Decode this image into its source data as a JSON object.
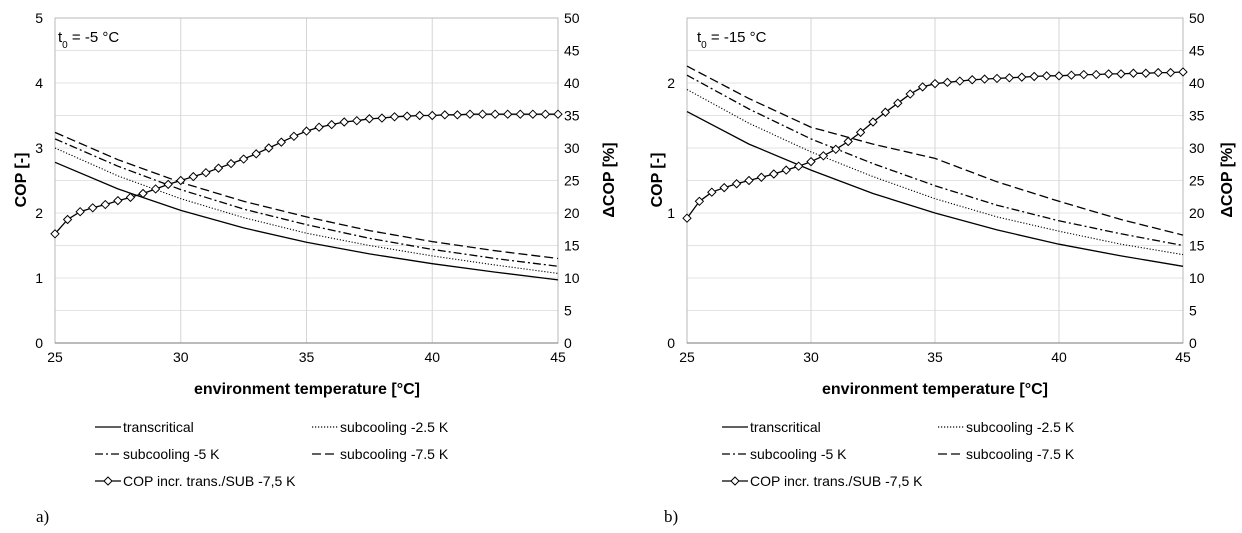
{
  "chart_data": [
    {
      "type": "line",
      "panel_label": "a)",
      "annotation": "t",
      "annotation_sub": "0",
      "annotation_rest": " = -5 °C",
      "xlabel": "environment temperature [°C]",
      "ylabel": "COP [-]",
      "y2label": "ΔCOP [%]",
      "xlim": [
        25,
        45
      ],
      "ylim": [
        0,
        5
      ],
      "y2lim": [
        0,
        50
      ],
      "xticks": [
        "25",
        "30",
        "35",
        "40",
        "45"
      ],
      "yticks": [
        "0",
        "1",
        "2",
        "3",
        "4",
        "5"
      ],
      "y2ticks": [
        "0",
        "5",
        "10",
        "15",
        "20",
        "25",
        "30",
        "35",
        "40",
        "45",
        "50"
      ],
      "grid": true,
      "series": [
        {
          "name": "transcritical",
          "axis": "left",
          "style": "solid",
          "x": [
            25,
            27.5,
            30,
            32.5,
            35,
            37.5,
            40,
            42.5,
            45
          ],
          "y": [
            2.78,
            2.37,
            2.04,
            1.77,
            1.55,
            1.37,
            1.22,
            1.09,
            0.97
          ]
        },
        {
          "name": "subcooling -2.5 K",
          "axis": "left",
          "style": "dotted",
          "x": [
            25,
            27.5,
            30,
            32.5,
            35,
            37.5,
            40,
            42.5,
            45
          ],
          "y": [
            3.0,
            2.57,
            2.22,
            1.93,
            1.69,
            1.5,
            1.34,
            1.2,
            1.07
          ]
        },
        {
          "name": "subcooling -5 K",
          "axis": "left",
          "style": "dashdot",
          "x": [
            25,
            27.5,
            30,
            32.5,
            35,
            37.5,
            40,
            42.5,
            45
          ],
          "y": [
            3.14,
            2.72,
            2.36,
            2.06,
            1.82,
            1.61,
            1.44,
            1.3,
            1.18
          ]
        },
        {
          "name": "subcooling -7.5 K",
          "axis": "left",
          "style": "dashed",
          "x": [
            25,
            27.5,
            30,
            32.5,
            35,
            37.5,
            40,
            42.5,
            45
          ],
          "y": [
            3.24,
            2.82,
            2.47,
            2.18,
            1.94,
            1.73,
            1.56,
            1.42,
            1.3
          ]
        },
        {
          "name": "COP incr. trans./SUB -7,5 K",
          "axis": "right",
          "style": "diamond",
          "x": [
            25,
            25.5,
            26,
            26.5,
            27,
            27.5,
            28,
            28.5,
            29,
            29.5,
            30,
            30.5,
            31,
            31.5,
            32,
            32.5,
            33,
            33.5,
            34,
            34.5,
            35,
            35.5,
            36,
            36.5,
            37,
            37.5,
            38,
            38.5,
            39,
            39.5,
            40,
            40.5,
            41,
            41.5,
            42,
            42.5,
            43,
            43.5,
            44,
            44.5,
            45
          ],
          "y": [
            16.8,
            19.0,
            20.2,
            20.8,
            21.3,
            21.9,
            22.4,
            23.0,
            23.7,
            24.4,
            25.0,
            25.6,
            26.2,
            26.9,
            27.6,
            28.3,
            29.1,
            30.0,
            30.9,
            31.8,
            32.6,
            33.2,
            33.6,
            34.0,
            34.2,
            34.5,
            34.6,
            34.8,
            34.9,
            35.0,
            35.0,
            35.1,
            35.1,
            35.2,
            35.2,
            35.2,
            35.2,
            35.2,
            35.2,
            35.2,
            35.2
          ]
        }
      ]
    },
    {
      "type": "line",
      "panel_label": "b)",
      "annotation": "t",
      "annotation_sub": "0",
      "annotation_rest": " = -15 °C",
      "xlabel": "environment temperature [°C]",
      "ylabel": "COP [-]",
      "y2label": "ΔCOP [%]",
      "xlim": [
        25,
        45
      ],
      "ylim": [
        0,
        2.5
      ],
      "y2lim": [
        0,
        50
      ],
      "xticks": [
        "25",
        "30",
        "35",
        "40",
        "45"
      ],
      "yticks": [
        "0",
        "1",
        "2"
      ],
      "y2ticks": [
        "0",
        "5",
        "10",
        "15",
        "20",
        "25",
        "30",
        "35",
        "40",
        "45",
        "50"
      ],
      "grid": true,
      "series": [
        {
          "name": "transcritical",
          "axis": "left",
          "style": "solid",
          "x": [
            25,
            27.5,
            30,
            32.5,
            35,
            37.5,
            40,
            42.5,
            45
          ],
          "y": [
            1.78,
            1.53,
            1.33,
            1.15,
            1.0,
            0.87,
            0.76,
            0.67,
            0.59
          ]
        },
        {
          "name": "subcooling -2.5 K",
          "axis": "left",
          "style": "dotted",
          "x": [
            25,
            27.5,
            30,
            32.5,
            35,
            37.5,
            40,
            42.5,
            45
          ],
          "y": [
            1.95,
            1.69,
            1.47,
            1.28,
            1.11,
            0.97,
            0.86,
            0.76,
            0.68
          ]
        },
        {
          "name": "subcooling -5 K",
          "axis": "left",
          "style": "dashdot",
          "x": [
            25,
            27.5,
            30,
            32.5,
            35,
            37.5,
            40,
            42.5,
            45
          ],
          "y": [
            2.06,
            1.8,
            1.57,
            1.38,
            1.21,
            1.06,
            0.94,
            0.84,
            0.75
          ]
        },
        {
          "name": "subcooling -7.5 K",
          "axis": "left",
          "style": "dashed",
          "x": [
            25,
            27.5,
            30,
            32.5,
            35,
            37.5,
            40,
            42.5,
            45
          ],
          "y": [
            2.13,
            1.88,
            1.66,
            1.53,
            1.42,
            1.24,
            1.09,
            0.95,
            0.83
          ]
        },
        {
          "name": "COP incr. trans./SUB -7,5 K",
          "axis": "right",
          "style": "diamond",
          "x": [
            25,
            25.5,
            26,
            26.5,
            27,
            27.5,
            28,
            28.5,
            29,
            29.5,
            30,
            30.5,
            31,
            31.5,
            32,
            32.5,
            33,
            33.5,
            34,
            34.5,
            35,
            35.5,
            36,
            36.5,
            37,
            37.5,
            38,
            38.5,
            39,
            39.5,
            40,
            40.5,
            41,
            41.5,
            42,
            42.5,
            43,
            43.5,
            44,
            44.5,
            45
          ],
          "y": [
            19.2,
            21.8,
            23.2,
            23.9,
            24.5,
            25.0,
            25.5,
            26.0,
            26.6,
            27.2,
            27.9,
            28.8,
            29.8,
            31.0,
            32.4,
            34.0,
            35.5,
            36.9,
            38.3,
            39.4,
            39.9,
            40.1,
            40.3,
            40.5,
            40.6,
            40.7,
            40.8,
            40.9,
            41.0,
            41.1,
            41.1,
            41.2,
            41.3,
            41.3,
            41.4,
            41.4,
            41.5,
            41.5,
            41.6,
            41.6,
            41.7
          ]
        }
      ]
    }
  ]
}
